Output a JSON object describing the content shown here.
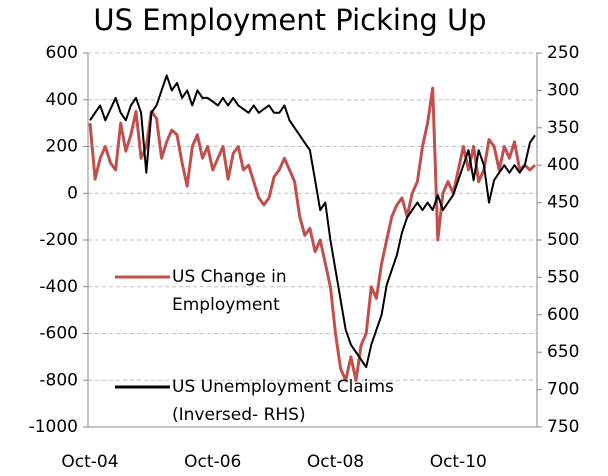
{
  "chart_data": {
    "type": "line",
    "title": "US Employment Picking Up",
    "categories": [
      "Oct-04",
      null,
      null,
      null,
      null,
      null,
      null,
      null,
      null,
      null,
      null,
      null,
      null,
      null,
      null,
      null,
      null,
      null,
      null,
      null,
      null,
      null,
      null,
      null,
      "Oct-06",
      null,
      null,
      null,
      null,
      null,
      null,
      null,
      null,
      null,
      null,
      null,
      null,
      null,
      null,
      null,
      null,
      null,
      null,
      null,
      null,
      null,
      null,
      null,
      "Oct-08",
      null,
      null,
      null,
      null,
      null,
      null,
      null,
      null,
      null,
      null,
      null,
      null,
      null,
      null,
      null,
      null,
      null,
      null,
      null,
      null,
      null,
      null,
      null,
      "Oct-10",
      null,
      null,
      null,
      null,
      null,
      null,
      null,
      null,
      null,
      null,
      null,
      null,
      null,
      null,
      null
    ],
    "series": [
      {
        "name": "US Change in Employment",
        "color": "#c0504d",
        "values": [
          300,
          60,
          150,
          200,
          130,
          100,
          300,
          180,
          250,
          350,
          150,
          200,
          350,
          320,
          150,
          220,
          270,
          250,
          130,
          30,
          200,
          250,
          150,
          200,
          100,
          150,
          200,
          60,
          170,
          200,
          100,
          120,
          50,
          -20,
          -50,
          -20,
          70,
          100,
          150,
          100,
          50,
          -100,
          -180,
          -150,
          -250,
          -200,
          -300,
          -400,
          -600,
          -750,
          -800,
          -700,
          -800,
          -650,
          -600,
          -400,
          -450,
          -300,
          -200,
          -100,
          -50,
          -20,
          -100,
          0,
          50,
          200,
          300,
          450,
          -200,
          0,
          50,
          0,
          100,
          200,
          100,
          200,
          50,
          100,
          230,
          200,
          100,
          200,
          150,
          220,
          100,
          120,
          100,
          120
        ]
      },
      {
        "name": "US Unemployment Claims (Inversed- RHS)",
        "color": "#000000",
        "axis": "y2",
        "values": [
          340,
          330,
          320,
          340,
          325,
          310,
          330,
          340,
          320,
          310,
          330,
          410,
          330,
          320,
          300,
          280,
          300,
          290,
          310,
          300,
          320,
          300,
          310,
          310,
          315,
          320,
          310,
          320,
          310,
          320,
          325,
          330,
          320,
          330,
          325,
          320,
          330,
          330,
          320,
          340,
          350,
          360,
          370,
          380,
          420,
          460,
          450,
          500,
          540,
          580,
          620,
          640,
          650,
          660,
          670,
          640,
          620,
          600,
          560,
          540,
          520,
          490,
          470,
          460,
          450,
          460,
          450,
          460,
          440,
          460,
          450,
          440,
          420,
          400,
          380,
          420,
          380,
          400,
          450,
          420,
          410,
          400,
          410,
          400,
          410,
          400,
          370,
          360
        ]
      }
    ],
    "ylim": [
      -1000,
      600
    ],
    "yticks": [
      -1000,
      -800,
      -600,
      -400,
      -200,
      0,
      200,
      400,
      600
    ],
    "y2lim": [
      750,
      250
    ],
    "y2ticks": [
      250,
      300,
      350,
      400,
      450,
      500,
      550,
      600,
      650,
      700,
      750
    ],
    "grid": true
  }
}
